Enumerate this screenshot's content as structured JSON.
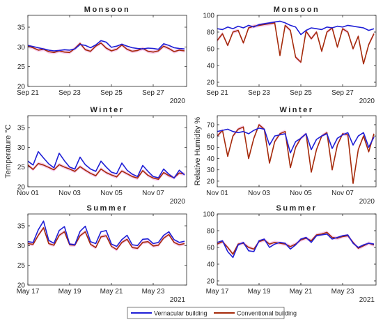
{
  "legend": {
    "entries": [
      {
        "label": "Vernacular building",
        "color": "#1f1fd6"
      },
      {
        "label": "Conventional building",
        "color": "#a52a0a"
      }
    ]
  },
  "colors": {
    "vernacular": "#1f1fd6",
    "conventional": "#a52a0a",
    "band": "#f3b8e8"
  },
  "chart_data": [
    {
      "type": "line",
      "title": "Monsoon",
      "xlabel": "",
      "ylabel": "",
      "ylim": [
        20,
        38
      ],
      "yticks": [
        20,
        25,
        30,
        35
      ],
      "xlim": [
        0,
        7.6
      ],
      "xticks": [
        0,
        2,
        4,
        6
      ],
      "xticklabels": [
        "Sep 21",
        "Sep 23",
        "Sep 25",
        "Sep 27"
      ],
      "year_label": "2020",
      "series": [
        {
          "name": "Vernacular building",
          "x": [
            0,
            0.25,
            0.5,
            0.75,
            1,
            1.25,
            1.5,
            1.75,
            2,
            2.25,
            2.5,
            2.75,
            3,
            3.25,
            3.5,
            3.75,
            4,
            4.25,
            4.5,
            4.75,
            5,
            5.25,
            5.5,
            5.75,
            6,
            6.25,
            6.5,
            6.75,
            7,
            7.25,
            7.5
          ],
          "values": [
            30.4,
            30.1,
            29.8,
            29.5,
            29.2,
            29.0,
            29.1,
            29.3,
            29.2,
            29.5,
            30.6,
            30.4,
            29.8,
            30.5,
            31.6,
            31.2,
            29.9,
            30.2,
            30.7,
            30.2,
            29.8,
            29.6,
            29.5,
            29.7,
            29.6,
            29.4,
            30.8,
            30.4,
            29.8,
            29.6,
            29.5
          ]
        },
        {
          "name": "Conventional building",
          "x": [
            0,
            0.25,
            0.5,
            0.75,
            1,
            1.25,
            1.5,
            1.75,
            2,
            2.25,
            2.5,
            2.75,
            3,
            3.25,
            3.5,
            3.75,
            4,
            4.25,
            4.5,
            4.75,
            5,
            5.25,
            5.5,
            5.75,
            6,
            6.25,
            6.5,
            6.75,
            7,
            7.25,
            7.5
          ],
          "values": [
            30.2,
            29.8,
            29.2,
            29.4,
            28.8,
            28.6,
            29.0,
            28.7,
            28.6,
            29.6,
            30.9,
            29.3,
            28.9,
            30.2,
            31.0,
            29.7,
            29.0,
            29.4,
            30.5,
            29.4,
            28.9,
            29.1,
            29.6,
            28.9,
            28.7,
            29.0,
            30.2,
            29.6,
            28.8,
            29.2,
            29.0
          ]
        }
      ]
    },
    {
      "type": "line",
      "title": "Monsoon",
      "xlabel": "",
      "ylabel": "",
      "ylim": [
        15,
        100
      ],
      "yticks": [
        20,
        40,
        60,
        80,
        100
      ],
      "xlim": [
        0,
        7.6
      ],
      "xticks": [
        0,
        2,
        4,
        6
      ],
      "xticklabels": [
        "Sep 21",
        "Sep 23",
        "Sep 25",
        "Sep 27"
      ],
      "year_label": "2020",
      "series": [
        {
          "name": "Vernacular building",
          "x": [
            0,
            0.25,
            0.5,
            0.75,
            1,
            1.25,
            1.5,
            1.75,
            2,
            2.25,
            2.5,
            2.75,
            3,
            3.25,
            3.5,
            3.75,
            4,
            4.25,
            4.5,
            4.75,
            5,
            5.25,
            5.5,
            5.75,
            6,
            6.25,
            6.5,
            6.75,
            7,
            7.25,
            7.5
          ],
          "values": [
            84,
            83,
            86,
            84,
            87,
            85,
            88,
            86,
            89,
            90,
            91,
            92,
            93,
            91,
            88,
            86,
            77,
            82,
            85,
            84,
            83,
            86,
            85,
            87,
            86,
            88,
            87,
            86,
            85,
            82,
            84
          ]
        },
        {
          "name": "Conventional building",
          "x": [
            0,
            0.25,
            0.5,
            0.75,
            1,
            1.25,
            1.5,
            1.75,
            2,
            2.25,
            2.5,
            2.75,
            3,
            3.25,
            3.5,
            3.75,
            4,
            4.25,
            4.5,
            4.75,
            5,
            5.25,
            5.5,
            5.75,
            6,
            6.25,
            6.5,
            6.75,
            7,
            7.25,
            7.5
          ],
          "values": [
            70,
            78,
            64,
            80,
            82,
            67,
            85,
            87,
            88,
            89,
            90,
            91,
            52,
            88,
            82,
            50,
            44,
            81,
            72,
            80,
            57,
            80,
            85,
            62,
            84,
            80,
            60,
            75,
            42,
            65,
            78
          ]
        }
      ]
    },
    {
      "type": "line",
      "title": "Winter",
      "xlabel": "",
      "ylabel": "Temperature °C",
      "ylim": [
        20,
        38
      ],
      "yticks": [
        20,
        25,
        30,
        35
      ],
      "xlim": [
        0,
        7.6
      ],
      "xticks": [
        0,
        2,
        4,
        6
      ],
      "xticklabels": [
        "Nov 01",
        "Nov 03",
        "Nov 05",
        "Nov 07"
      ],
      "year_label": "2020",
      "series": [
        {
          "name": "Vernacular building",
          "x": [
            0,
            0.25,
            0.5,
            0.75,
            1,
            1.25,
            1.5,
            1.75,
            2,
            2.25,
            2.5,
            2.75,
            3,
            3.25,
            3.5,
            3.75,
            4,
            4.25,
            4.5,
            4.75,
            5,
            5.25,
            5.5,
            5.75,
            6,
            6.25,
            6.5,
            6.75,
            7,
            7.25,
            7.5
          ],
          "values": [
            26.5,
            25.5,
            28.9,
            27.3,
            25.8,
            24.8,
            28.5,
            26.6,
            25.0,
            24.5,
            27.5,
            25.6,
            24.5,
            23.9,
            26.5,
            25.0,
            23.7,
            23.3,
            26.0,
            24.2,
            23.2,
            22.6,
            25.4,
            23.9,
            22.6,
            22.3,
            24.5,
            23.2,
            22.2,
            24.2,
            23.0
          ]
        },
        {
          "name": "Conventional building",
          "x": [
            0,
            0.25,
            0.5,
            0.75,
            1,
            1.25,
            1.5,
            1.75,
            2,
            2.25,
            2.5,
            2.75,
            3,
            3.25,
            3.5,
            3.75,
            4,
            4.25,
            4.5,
            4.75,
            5,
            5.25,
            5.5,
            5.75,
            6,
            6.25,
            6.5,
            6.75,
            7,
            7.25,
            7.5
          ],
          "values": [
            25.5,
            24.4,
            25.9,
            25.5,
            24.9,
            24.3,
            25.6,
            25.0,
            24.5,
            23.9,
            25.1,
            24.2,
            23.4,
            22.8,
            24.5,
            23.6,
            23.0,
            22.5,
            24.0,
            23.3,
            22.6,
            22.2,
            24.1,
            22.9,
            22.2,
            21.9,
            23.6,
            22.8,
            22.3,
            23.5,
            23.2
          ]
        }
      ]
    },
    {
      "type": "line",
      "title": "Winter",
      "xlabel": "",
      "ylabel": "Relative Humidity %",
      "ylim": [
        15,
        78
      ],
      "yticks": [
        20,
        30,
        40,
        50,
        60,
        70
      ],
      "xlim": [
        0,
        7.6
      ],
      "xticks": [
        0,
        2,
        4,
        6
      ],
      "xticklabels": [
        "Nov 01",
        "Nov 03",
        "Nov 05",
        "Nov 07"
      ],
      "year_label": "2020",
      "series": [
        {
          "name": "Vernacular building",
          "x": [
            0,
            0.25,
            0.5,
            0.75,
            1,
            1.25,
            1.5,
            1.75,
            2,
            2.25,
            2.5,
            2.75,
            3,
            3.25,
            3.5,
            3.75,
            4,
            4.25,
            4.5,
            4.75,
            5,
            5.25,
            5.5,
            5.75,
            6,
            6.25,
            6.5,
            6.75,
            7,
            7.25,
            7.5
          ],
          "values": [
            64,
            65,
            66,
            64,
            63,
            64,
            62,
            65,
            67,
            66,
            52,
            60,
            61,
            62,
            45,
            55,
            58,
            62,
            48,
            57,
            60,
            62,
            49,
            58,
            61,
            63,
            52,
            60,
            63,
            50,
            59
          ]
        },
        {
          "name": "Conventional building",
          "x": [
            0,
            0.25,
            0.5,
            0.75,
            1,
            1.25,
            1.5,
            1.75,
            2,
            2.25,
            2.5,
            2.75,
            3,
            3.25,
            3.5,
            3.75,
            4,
            4.25,
            4.5,
            4.75,
            5,
            5.25,
            5.5,
            5.75,
            6,
            6.25,
            6.5,
            6.75,
            7,
            7.25,
            7.5
          ],
          "values": [
            60,
            65,
            42,
            60,
            66,
            68,
            40,
            58,
            70,
            66,
            36,
            55,
            62,
            64,
            32,
            50,
            58,
            62,
            28,
            48,
            60,
            63,
            30,
            52,
            62,
            61,
            18,
            48,
            60,
            46,
            62
          ]
        }
      ]
    },
    {
      "type": "line",
      "title": "Summer",
      "xlabel": "",
      "ylabel": "",
      "ylim": [
        20,
        38
      ],
      "yticks": [
        20,
        25,
        30,
        35
      ],
      "xlim": [
        0,
        7.6
      ],
      "xticks": [
        0,
        2,
        4,
        6
      ],
      "xticklabels": [
        "May 17",
        "May 19",
        "May 21",
        "May 23"
      ],
      "year_label": "2021",
      "series": [
        {
          "name": "Vernacular building",
          "x": [
            0,
            0.25,
            0.5,
            0.75,
            1,
            1.25,
            1.5,
            1.75,
            2,
            2.25,
            2.5,
            2.75,
            3,
            3.25,
            3.5,
            3.75,
            4,
            4.25,
            4.5,
            4.75,
            5,
            5.25,
            5.5,
            5.75,
            6,
            6.25,
            6.5,
            6.75,
            7,
            7.25,
            7.5
          ],
          "values": [
            31.0,
            30.8,
            34.0,
            36.2,
            31.3,
            30.6,
            33.8,
            34.8,
            30.4,
            30.2,
            33.6,
            34.9,
            31.0,
            30.5,
            33.5,
            33.8,
            30.4,
            29.8,
            31.5,
            32.6,
            30.2,
            30.0,
            31.6,
            31.7,
            30.5,
            30.8,
            32.6,
            33.5,
            31.5,
            30.8,
            31.1
          ]
        },
        {
          "name": "Conventional building",
          "x": [
            0,
            0.25,
            0.5,
            0.75,
            1,
            1.25,
            1.5,
            1.75,
            2,
            2.25,
            2.5,
            2.75,
            3,
            3.25,
            3.5,
            3.75,
            4,
            4.25,
            4.5,
            4.75,
            5,
            5.25,
            5.5,
            5.75,
            6,
            6.25,
            6.5,
            6.75,
            7,
            7.25,
            7.5
          ],
          "values": [
            30.5,
            30.3,
            32.6,
            34.5,
            30.5,
            30.1,
            32.6,
            33.5,
            30.2,
            30.1,
            32.5,
            33.5,
            30.3,
            29.5,
            32.2,
            32.5,
            29.8,
            29.0,
            30.8,
            31.6,
            29.5,
            29.3,
            30.8,
            31.0,
            29.9,
            30.1,
            31.9,
            32.8,
            30.8,
            30.2,
            30.5
          ]
        }
      ]
    },
    {
      "type": "line",
      "title": "Summer",
      "xlabel": "",
      "ylabel": "",
      "ylim": [
        15,
        100
      ],
      "yticks": [
        20,
        40,
        60,
        80,
        100
      ],
      "xlim": [
        0,
        7.6
      ],
      "xticks": [
        0,
        2,
        4,
        6
      ],
      "xticklabels": [
        "May 17",
        "May 19",
        "May 21",
        "May 23"
      ],
      "year_label": "2021",
      "series": [
        {
          "name": "Vernacular building",
          "x": [
            0,
            0.25,
            0.5,
            0.75,
            1,
            1.25,
            1.5,
            1.75,
            2,
            2.25,
            2.5,
            2.75,
            3,
            3.25,
            3.5,
            3.75,
            4,
            4.25,
            4.5,
            4.75,
            5,
            5.25,
            5.5,
            5.75,
            6,
            6.25,
            6.5,
            6.75,
            7,
            7.25,
            7.5
          ],
          "values": [
            66,
            68,
            55,
            48,
            63,
            66,
            56,
            55,
            68,
            70,
            60,
            64,
            66,
            65,
            58,
            63,
            70,
            72,
            66,
            74,
            75,
            76,
            70,
            72,
            74,
            75,
            65,
            60,
            63,
            65,
            64
          ]
        },
        {
          "name": "Conventional building",
          "x": [
            0,
            0.25,
            0.5,
            0.75,
            1,
            1.25,
            1.5,
            1.75,
            2,
            2.25,
            2.5,
            2.75,
            3,
            3.25,
            3.5,
            3.75,
            4,
            4.25,
            4.5,
            4.75,
            5,
            5.25,
            5.5,
            5.75,
            6,
            6.25,
            6.5,
            6.75,
            7,
            7.25,
            7.5
          ],
          "values": [
            64,
            67,
            60,
            52,
            64,
            65,
            60,
            58,
            67,
            69,
            64,
            66,
            65,
            64,
            61,
            64,
            69,
            71,
            68,
            75,
            76,
            78,
            72,
            71,
            73,
            74,
            66,
            59,
            62,
            65,
            63
          ]
        }
      ]
    }
  ]
}
